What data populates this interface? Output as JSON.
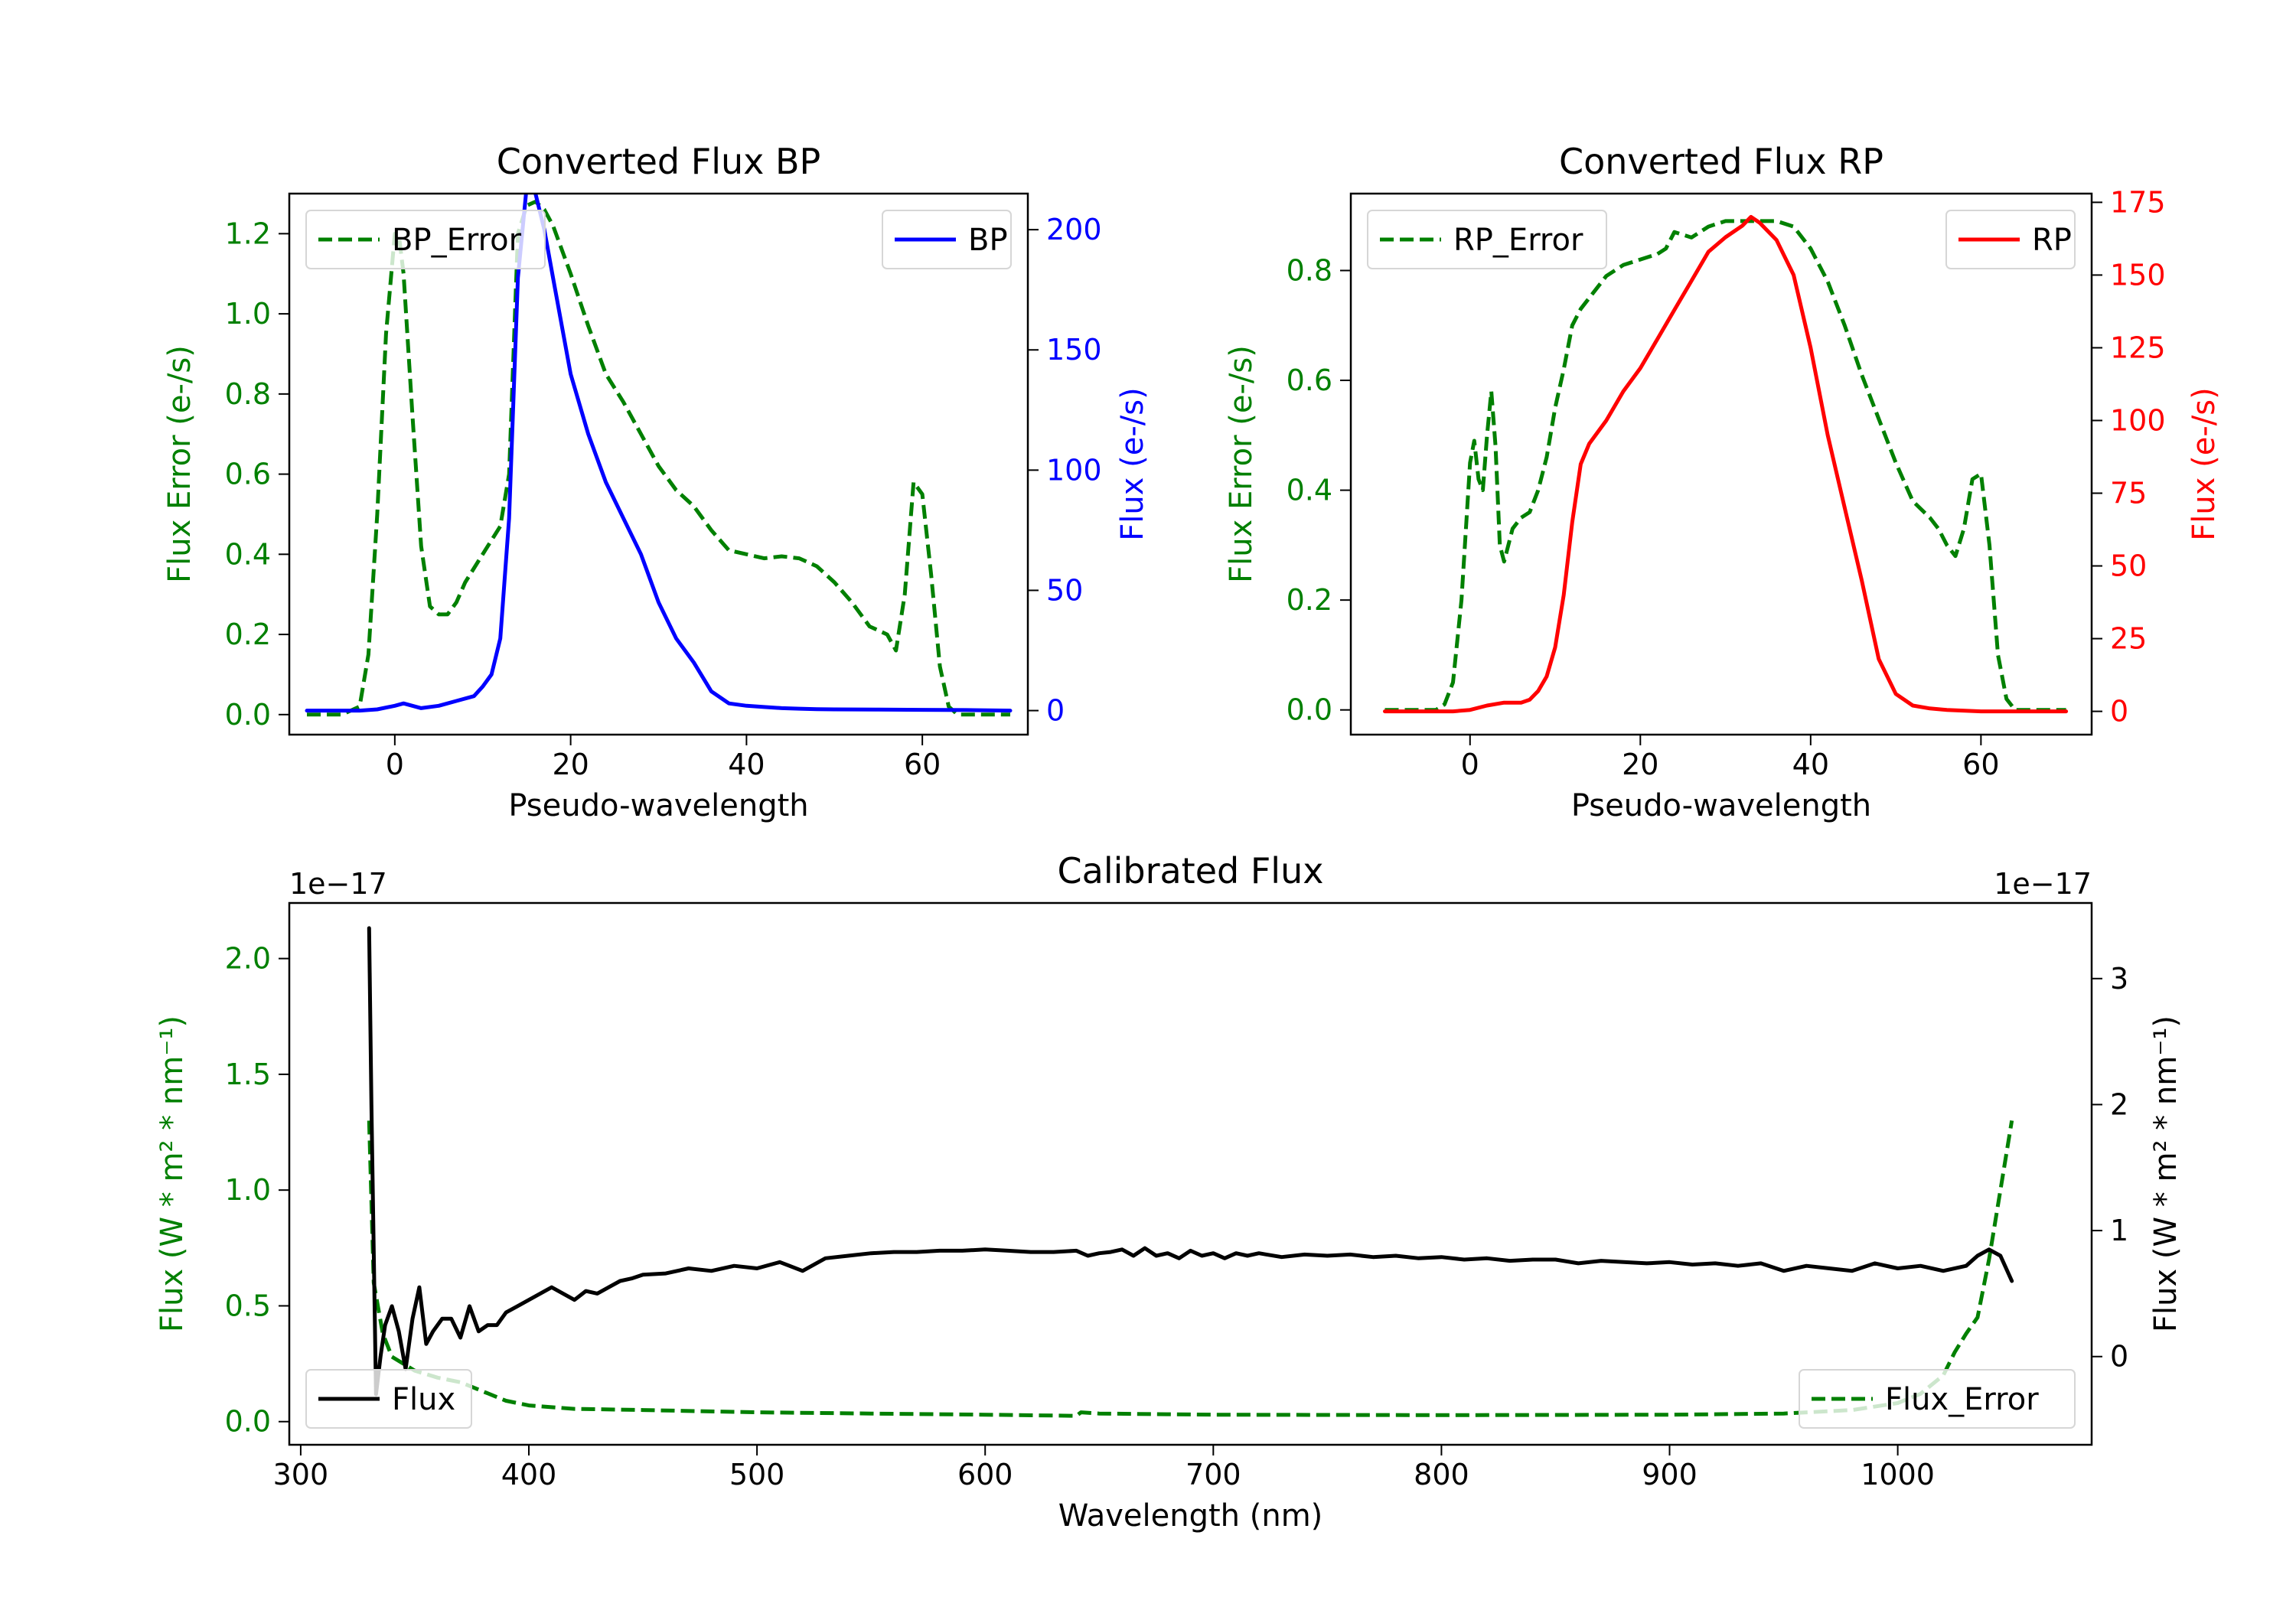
{
  "chart_data": [
    {
      "id": "bp",
      "type": "line",
      "title": "Converted Flux BP",
      "xlabel": "Pseudo-wavelength",
      "xlim": [
        -12,
        72
      ],
      "xticks": [
        0,
        20,
        40,
        60
      ],
      "left_axis": {
        "label": "Flux Error (e-/s)",
        "color": "#008000",
        "ylim": [
          -0.05,
          1.3
        ],
        "ticks": [
          0.0,
          0.2,
          0.4,
          0.6,
          0.8,
          1.0,
          1.2
        ],
        "tick_labels": [
          "0.0",
          "0.2",
          "0.4",
          "0.6",
          "0.8",
          "1.0",
          "1.2"
        ]
      },
      "right_axis": {
        "label": "Flux (e-/s)",
        "color": "#0000ff",
        "ylim": [
          -10,
          215
        ],
        "ticks": [
          0,
          50,
          100,
          150,
          200
        ],
        "tick_labels": [
          "0",
          "50",
          "100",
          "150",
          "200"
        ]
      },
      "series": [
        {
          "name": "BP_Error",
          "axis": "left",
          "color": "#008000",
          "dash": true,
          "x": [
            -10,
            -6,
            -4,
            -3,
            -2,
            -1,
            0,
            0.5,
            1,
            2,
            3,
            4,
            5,
            6,
            7,
            8,
            10,
            12,
            13,
            14,
            15,
            16,
            17,
            18,
            20,
            22,
            24,
            26,
            28,
            30,
            32,
            34,
            36,
            38,
            40,
            42,
            44,
            46,
            48,
            50,
            52,
            54,
            55,
            56,
            57,
            58,
            59,
            60,
            61,
            62,
            63,
            64,
            66,
            70
          ],
          "values": [
            0.0,
            0.0,
            0.02,
            0.15,
            0.5,
            0.95,
            1.2,
            1.19,
            1.1,
            0.75,
            0.42,
            0.27,
            0.25,
            0.25,
            0.28,
            0.33,
            0.4,
            0.47,
            0.6,
            1.2,
            1.27,
            1.28,
            1.26,
            1.22,
            1.1,
            0.97,
            0.85,
            0.78,
            0.7,
            0.62,
            0.56,
            0.52,
            0.46,
            0.41,
            0.4,
            0.39,
            0.395,
            0.39,
            0.37,
            0.33,
            0.28,
            0.22,
            0.21,
            0.2,
            0.16,
            0.3,
            0.58,
            0.55,
            0.35,
            0.12,
            0.02,
            0.0,
            0.0,
            0.0
          ],
          "legend": "BP_Error",
          "legend_pos": "upper-left"
        },
        {
          "name": "BP",
          "axis": "right",
          "color": "#0000ff",
          "dash": false,
          "x": [
            -10,
            -4,
            -2,
            0,
            1,
            2,
            3,
            5,
            7,
            9,
            10,
            11,
            12,
            13,
            14,
            15,
            16,
            17,
            18,
            20,
            22,
            24,
            26,
            28,
            30,
            32,
            34,
            36,
            38,
            40,
            42,
            44,
            46,
            48,
            50,
            55,
            60,
            65,
            70
          ],
          "values": [
            0,
            0,
            0.5,
            2,
            3,
            2,
            1,
            2,
            4,
            6,
            10,
            15,
            30,
            80,
            180,
            218,
            215,
            200,
            180,
            140,
            115,
            95,
            80,
            65,
            45,
            30,
            20,
            8,
            3,
            2,
            1.5,
            1,
            0.8,
            0.6,
            0.5,
            0.4,
            0.3,
            0.2,
            0
          ],
          "legend": "BP",
          "legend_pos": "upper-right"
        }
      ]
    },
    {
      "id": "rp",
      "type": "line",
      "title": "Converted Flux RP",
      "xlabel": "Pseudo-wavelength",
      "xlim": [
        -14,
        73
      ],
      "xticks": [
        0,
        20,
        40,
        60
      ],
      "left_axis": {
        "label": "Flux Error (e-/s)",
        "color": "#008000",
        "ylim": [
          -0.045,
          0.94
        ],
        "ticks": [
          0.0,
          0.2,
          0.4,
          0.6,
          0.8
        ],
        "tick_labels": [
          "0.0",
          "0.2",
          "0.4",
          "0.6",
          "0.8"
        ]
      },
      "right_axis": {
        "label": "Flux (e-/s)",
        "color": "#ff0000",
        "ylim": [
          -8,
          178
        ],
        "ticks": [
          0,
          25,
          50,
          75,
          100,
          125,
          150,
          175
        ],
        "tick_labels": [
          "0",
          "25",
          "50",
          "75",
          "100",
          "125",
          "150",
          "175"
        ]
      },
      "series": [
        {
          "name": "RP_Error",
          "axis": "left",
          "color": "#008000",
          "dash": true,
          "x": [
            -10,
            -5,
            -4,
            -3,
            -2,
            -1,
            0,
            0.5,
            1,
            1.5,
            2,
            2.5,
            3,
            3.5,
            4,
            5,
            6,
            7,
            8,
            9,
            10,
            11,
            12,
            13,
            14,
            16,
            18,
            20,
            22,
            23,
            24,
            26,
            28,
            30,
            32,
            34,
            36,
            38,
            40,
            42,
            44,
            46,
            48,
            50,
            52,
            54,
            55,
            56,
            57,
            58,
            59,
            60,
            61,
            62,
            63,
            64,
            65,
            70
          ],
          "values": [
            0.0,
            0.0,
            0.0,
            0.01,
            0.05,
            0.2,
            0.45,
            0.49,
            0.42,
            0.4,
            0.5,
            0.58,
            0.48,
            0.3,
            0.27,
            0.33,
            0.35,
            0.36,
            0.4,
            0.46,
            0.55,
            0.62,
            0.7,
            0.73,
            0.75,
            0.79,
            0.81,
            0.82,
            0.83,
            0.84,
            0.87,
            0.86,
            0.88,
            0.89,
            0.89,
            0.89,
            0.89,
            0.88,
            0.84,
            0.78,
            0.7,
            0.61,
            0.53,
            0.45,
            0.38,
            0.35,
            0.33,
            0.3,
            0.28,
            0.33,
            0.42,
            0.43,
            0.3,
            0.1,
            0.02,
            0.0,
            0.0,
            0.0
          ],
          "legend": "RP_Error",
          "legend_pos": "upper-left"
        },
        {
          "name": "RP",
          "axis": "right",
          "color": "#ff0000",
          "dash": false,
          "x": [
            -10,
            -2,
            0,
            2,
            4,
            6,
            7,
            8,
            9,
            10,
            11,
            12,
            13,
            14,
            16,
            18,
            20,
            22,
            24,
            26,
            28,
            30,
            32,
            33,
            34,
            36,
            38,
            40,
            42,
            44,
            46,
            48,
            50,
            52,
            54,
            56,
            60,
            65,
            70
          ],
          "values": [
            0,
            0,
            0.5,
            2,
            3,
            3,
            4,
            7,
            12,
            22,
            40,
            65,
            85,
            92,
            100,
            110,
            118,
            128,
            138,
            148,
            158,
            163,
            167,
            170,
            168,
            162,
            150,
            125,
            95,
            70,
            45,
            18,
            6,
            2,
            1,
            0.5,
            0,
            0,
            0
          ],
          "legend": "RP",
          "legend_pos": "upper-right"
        }
      ]
    },
    {
      "id": "cal",
      "type": "line",
      "title": "Calibrated Flux",
      "xlabel": "Wavelength (nm)",
      "xlim": [
        295,
        1085
      ],
      "xticks": [
        300,
        400,
        500,
        600,
        700,
        800,
        900,
        1000
      ],
      "left_axis": {
        "label": "Flux (W * m² * nm⁻¹)",
        "color": "#008000",
        "offset_text": "1e−17",
        "ylim": [
          -0.1,
          2.24
        ],
        "ticks": [
          0.0,
          0.5,
          1.0,
          1.5,
          2.0
        ],
        "tick_labels": [
          "0.0",
          "0.5",
          "1.0",
          "1.5",
          "2.0"
        ]
      },
      "right_axis": {
        "label": "Flux (W * m² * nm⁻¹)",
        "color": "#000000",
        "offset_text": "1e−17",
        "ylim": [
          -0.7,
          3.6
        ],
        "ticks": [
          0,
          1,
          2,
          3
        ],
        "tick_labels": [
          "0",
          "1",
          "2",
          "3"
        ]
      },
      "series": [
        {
          "name": "Flux_Error",
          "axis": "left",
          "color": "#008000",
          "dash": true,
          "x": [
            330,
            332,
            336,
            340,
            350,
            360,
            370,
            380,
            390,
            400,
            420,
            450,
            500,
            550,
            600,
            640,
            642,
            650,
            700,
            800,
            900,
            950,
            980,
            1000,
            1010,
            1020,
            1025,
            1030,
            1035,
            1040,
            1045,
            1050
          ],
          "values": [
            1.3,
            0.6,
            0.38,
            0.28,
            0.22,
            0.19,
            0.17,
            0.13,
            0.09,
            0.07,
            0.055,
            0.05,
            0.04,
            0.035,
            0.03,
            0.025,
            0.04,
            0.035,
            0.03,
            0.028,
            0.03,
            0.035,
            0.05,
            0.08,
            0.12,
            0.2,
            0.3,
            0.38,
            0.45,
            0.7,
            1.0,
            1.3
          ],
          "legend": "Flux_Error",
          "legend_pos": "lower-right"
        },
        {
          "name": "Flux",
          "axis": "right",
          "color": "#000000",
          "dash": false,
          "x": [
            330,
            331,
            333,
            335,
            337,
            340,
            343,
            346,
            349,
            352,
            355,
            358,
            362,
            366,
            370,
            374,
            378,
            382,
            386,
            390,
            395,
            400,
            405,
            410,
            415,
            420,
            425,
            430,
            435,
            440,
            445,
            450,
            460,
            470,
            480,
            490,
            500,
            510,
            520,
            530,
            540,
            550,
            560,
            570,
            580,
            590,
            600,
            610,
            620,
            630,
            640,
            645,
            650,
            655,
            660,
            665,
            670,
            675,
            680,
            685,
            690,
            695,
            700,
            705,
            710,
            715,
            720,
            730,
            740,
            750,
            760,
            770,
            780,
            790,
            800,
            810,
            820,
            830,
            840,
            850,
            860,
            870,
            880,
            890,
            900,
            910,
            920,
            930,
            940,
            950,
            960,
            970,
            980,
            990,
            1000,
            1010,
            1020,
            1030,
            1035,
            1040,
            1045,
            1050
          ],
          "values": [
            3.4,
            2.0,
            -0.3,
            0.0,
            0.25,
            0.4,
            0.2,
            -0.1,
            0.3,
            0.55,
            0.1,
            0.2,
            0.3,
            0.3,
            0.15,
            0.4,
            0.2,
            0.25,
            0.25,
            0.35,
            0.4,
            0.45,
            0.5,
            0.55,
            0.5,
            0.45,
            0.52,
            0.5,
            0.55,
            0.6,
            0.62,
            0.65,
            0.66,
            0.7,
            0.68,
            0.72,
            0.7,
            0.75,
            0.68,
            0.78,
            0.8,
            0.82,
            0.83,
            0.83,
            0.84,
            0.84,
            0.85,
            0.84,
            0.83,
            0.83,
            0.84,
            0.8,
            0.82,
            0.83,
            0.85,
            0.8,
            0.86,
            0.8,
            0.82,
            0.78,
            0.84,
            0.8,
            0.82,
            0.78,
            0.82,
            0.8,
            0.82,
            0.79,
            0.81,
            0.8,
            0.81,
            0.79,
            0.8,
            0.78,
            0.79,
            0.77,
            0.78,
            0.76,
            0.77,
            0.77,
            0.74,
            0.76,
            0.75,
            0.74,
            0.75,
            0.73,
            0.74,
            0.72,
            0.74,
            0.68,
            0.72,
            0.7,
            0.68,
            0.74,
            0.7,
            0.72,
            0.68,
            0.72,
            0.8,
            0.85,
            0.8,
            0.6
          ],
          "legend": "Flux",
          "legend_pos": "lower-left"
        }
      ]
    }
  ]
}
